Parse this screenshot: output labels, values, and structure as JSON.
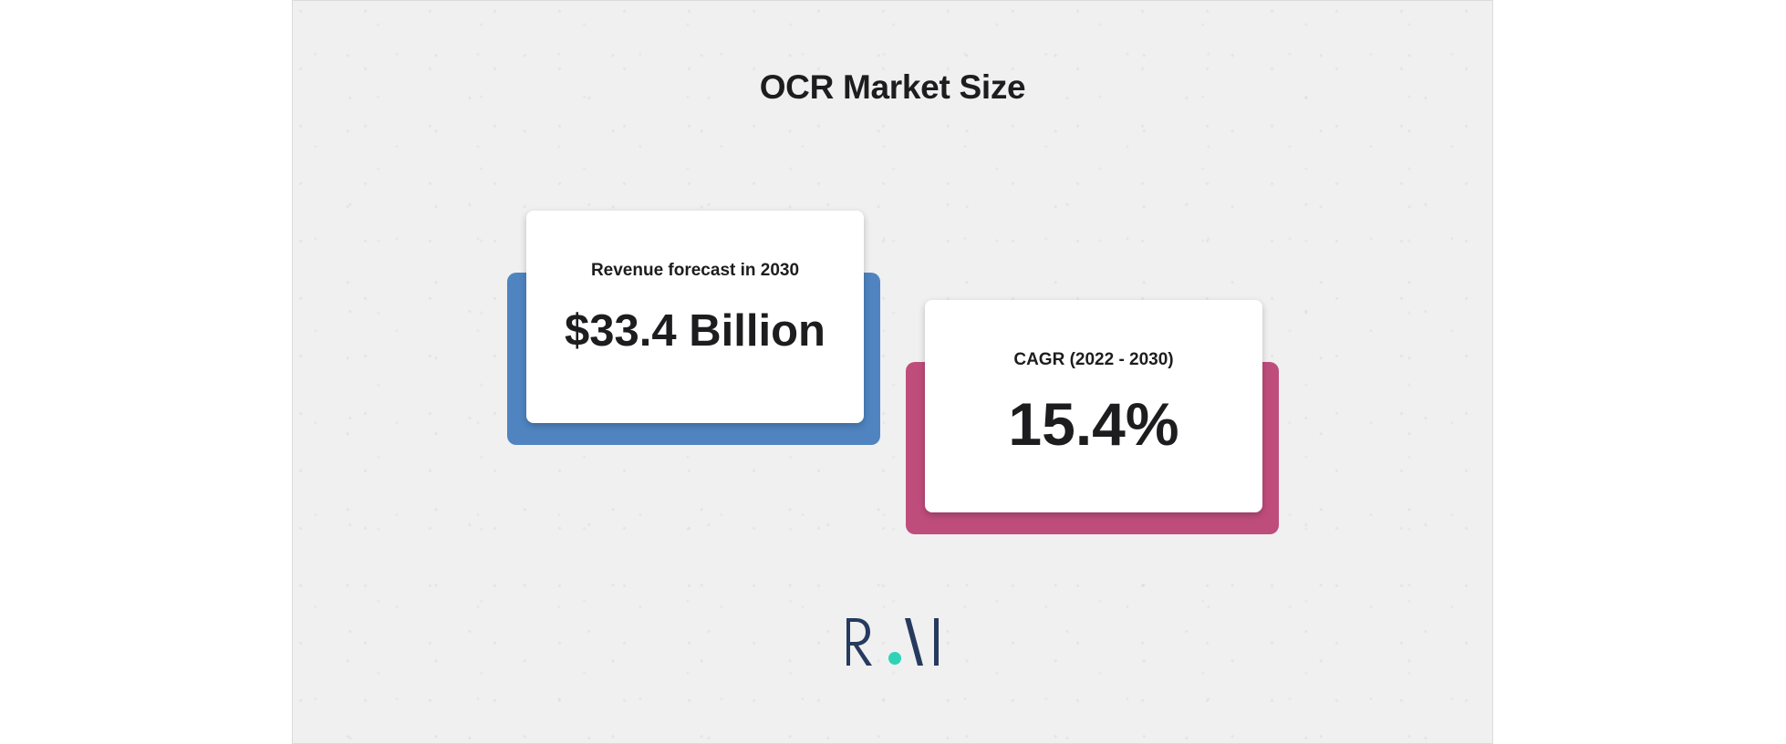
{
  "title": "OCR Market Size",
  "cards": [
    {
      "label": "Revenue forecast in 2030",
      "value": "$33.4 Billion",
      "accent_color": "#4f84c1"
    },
    {
      "label": "CAGR (2022 - 2030)",
      "value": "15.4%",
      "accent_color": "#bf4d7c"
    }
  ],
  "logo": {
    "text": "RAI",
    "color": "#263a5e",
    "dot_color": "#2ed3b7"
  }
}
